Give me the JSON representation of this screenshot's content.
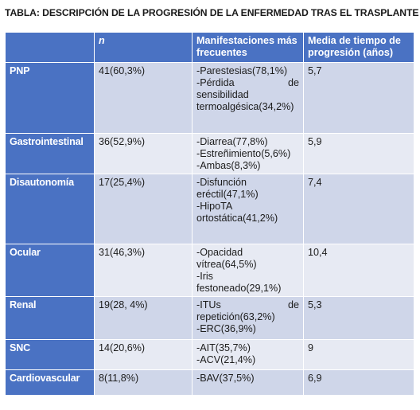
{
  "title": "TABLA: DESCRIPCIÓN DE LA PROGRESIÓN DE LA ENFERMEDAD TRAS EL TRASPLANTE",
  "header": {
    "col0": "",
    "col1": "n",
    "col2": "Manifestaciones más frecuentes",
    "col3": "Media de tiempo de progresión (años)"
  },
  "rows": [
    {
      "label": "PNP",
      "n": "41(60,3%)",
      "manifest": [
        "-Parestesias(78,1%)",
        "-Pérdida de",
        "sensibilidad",
        "termoalgésica(34,2%)"
      ],
      "time": "5,7"
    },
    {
      "label": "Gastrointestinal",
      "n": "36(52,9%)",
      "manifest": [
        "-Diarrea(77,8%)",
        "-Estreñimiento(5,6%)",
        "-Ambas(8,3%)"
      ],
      "time": "5,9"
    },
    {
      "label": "Disautonomía",
      "n": "17(25,4%)",
      "manifest": [
        "-Disfunción",
        "eréctil(47,1%)",
        "-HipoTA",
        "ortostática(41,2%)"
      ],
      "time": "7,4"
    },
    {
      "label": "Ocular",
      "n": "31(46,3%)",
      "manifest": [
        "-Opacidad",
        "vítrea(64,5%)",
        "-Iris",
        "festoneado(29,1%)"
      ],
      "time": "10,4"
    },
    {
      "label": "Renal",
      "n": "19(28, 4%)",
      "manifest": [
        "-ITUs de",
        "repetición(63,2%)",
        "-ERC(36,9%)"
      ],
      "time": "5,3"
    },
    {
      "label": "SNC",
      "n": "14(20,6%)",
      "manifest": [
        "-AIT(35,7%)",
        "-ACV(21,4%)"
      ],
      "time": "9"
    },
    {
      "label": "Cardiovascular",
      "n": "8(11,8%)",
      "manifest": [
        "-BAV(37,5%)"
      ],
      "time": "6,9"
    }
  ],
  "colors": {
    "header": "#4a72c3",
    "row_dark": "#cfd6e9",
    "row_light": "#e7eaf3"
  }
}
